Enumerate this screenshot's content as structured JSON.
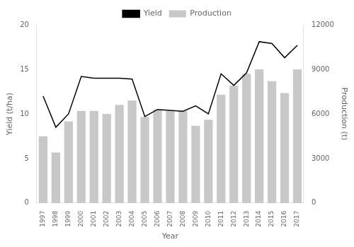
{
  "chart_data": {
    "type": "bar",
    "categories": [
      "1997",
      "1998",
      "1999",
      "2000",
      "2001",
      "2002",
      "2003",
      "2004",
      "2005",
      "2006",
      "2007",
      "2008",
      "2009",
      "2010",
      "2011",
      "2012",
      "2013",
      "2014",
      "2015",
      "2016",
      "2017"
    ],
    "series": [
      {
        "name": "Yield",
        "type": "line",
        "color": "#000000",
        "values": [
          12.0,
          8.5,
          10.0,
          14.2,
          14.0,
          14.0,
          14.0,
          13.9,
          9.7,
          10.5,
          10.4,
          10.3,
          10.9,
          10.0,
          14.5,
          13.2,
          14.6,
          18.1,
          17.9,
          16.3,
          17.7
        ]
      },
      {
        "name": "Production",
        "type": "bar",
        "color": "#c8c8c8",
        "axis": "y2",
        "values": [
          4500,
          3400,
          5500,
          6200,
          6200,
          6000,
          6600,
          6900,
          5800,
          6300,
          6200,
          6200,
          5200,
          5600,
          7300,
          7900,
          8700,
          9000,
          8200,
          7400,
          9000
        ]
      }
    ],
    "xlabel": "Year",
    "ylabel": "Yield (t/ha)",
    "y2label": "Production (t)",
    "ylim": [
      0,
      20
    ],
    "yticks": [
      0,
      5,
      10,
      15,
      20
    ],
    "y2lim": [
      0,
      12000
    ],
    "y2ticks": [
      0,
      3000,
      6000,
      9000,
      12000
    ],
    "legend": "top",
    "grid": false
  }
}
